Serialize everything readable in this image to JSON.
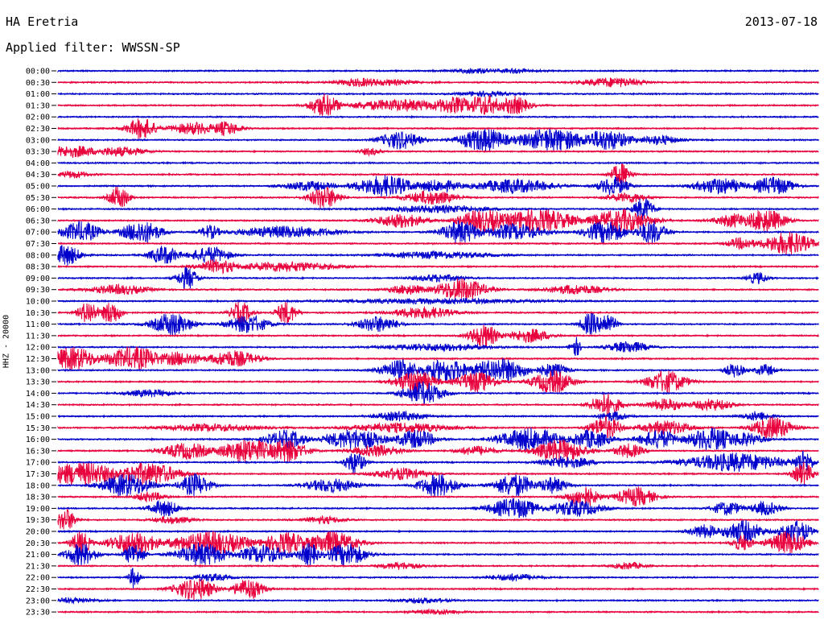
{
  "header": {
    "station": "HA Eretria",
    "date": "2013-07-18",
    "filter": "Applied filter: WWSSN-SP"
  },
  "colors": {
    "blue": "#0000cc",
    "red": "#e8003c"
  },
  "chart_data": {
    "type": "line",
    "title": "HA Eretria",
    "ylabel": "HHZ - 20000",
    "row_labels": [
      "00:00",
      "00:30",
      "01:00",
      "01:30",
      "02:00",
      "02:30",
      "03:00",
      "03:30",
      "04:00",
      "04:30",
      "05:00",
      "05:30",
      "06:00",
      "06:30",
      "07:00",
      "07:30",
      "08:00",
      "08:30",
      "09:00",
      "09:30",
      "10:00",
      "10:30",
      "11:00",
      "11:30",
      "12:00",
      "12:30",
      "13:00",
      "13:30",
      "14:00",
      "14:30",
      "15:00",
      "15:30",
      "16:00",
      "16:30",
      "17:00",
      "17:30",
      "18:00",
      "18:30",
      "19:00",
      "19:30",
      "20:00",
      "20:30",
      "21:00",
      "21:30",
      "22:00",
      "22:30",
      "23:00",
      "23:30"
    ],
    "row_colors": [
      "blue",
      "red",
      "blue",
      "red",
      "blue",
      "red",
      "blue",
      "red",
      "blue",
      "red",
      "blue",
      "red",
      "blue",
      "red",
      "blue",
      "red",
      "blue",
      "red",
      "blue",
      "red",
      "blue",
      "red",
      "blue",
      "red",
      "blue",
      "red",
      "blue",
      "red",
      "blue",
      "red",
      "blue",
      "red",
      "blue",
      "red",
      "blue",
      "red",
      "blue",
      "red",
      "blue",
      "red",
      "blue",
      "red",
      "blue",
      "red",
      "blue",
      "red",
      "blue",
      "red"
    ],
    "row_minutes": 30,
    "grid": false,
    "bursts": [
      [
        [
          0.55,
          0.2,
          0.05
        ],
        [
          0.6,
          0.15,
          0.05
        ]
      ],
      [
        [
          0.4,
          0.35,
          0.05
        ],
        [
          0.43,
          0.25,
          0.06
        ],
        [
          0.73,
          0.4,
          0.06
        ]
      ],
      [
        [
          0.56,
          0.2,
          0.05
        ]
      ],
      [
        [
          0.35,
          1.0,
          0.03
        ],
        [
          0.45,
          0.5,
          0.1
        ],
        [
          0.52,
          0.7,
          0.05
        ],
        [
          0.56,
          0.9,
          0.04
        ],
        [
          0.6,
          0.8,
          0.03
        ]
      ],
      [],
      [
        [
          0.11,
          0.9,
          0.03
        ],
        [
          0.18,
          0.5,
          0.05
        ],
        [
          0.22,
          0.6,
          0.03
        ]
      ],
      [
        [
          0.45,
          0.8,
          0.04
        ],
        [
          0.56,
          1.0,
          0.05
        ],
        [
          0.65,
          1.0,
          0.07
        ],
        [
          0.72,
          0.9,
          0.05
        ],
        [
          0.79,
          0.4,
          0.04
        ]
      ],
      [
        [
          0.02,
          0.5,
          0.05
        ],
        [
          0.08,
          0.4,
          0.05
        ],
        [
          0.41,
          0.3,
          0.02
        ]
      ],
      [],
      [
        [
          0.02,
          0.3,
          0.03
        ],
        [
          0.74,
          1.0,
          0.02
        ]
      ],
      [
        [
          0.33,
          0.4,
          0.05
        ],
        [
          0.43,
          0.9,
          0.06
        ],
        [
          0.5,
          0.5,
          0.05
        ],
        [
          0.6,
          0.6,
          0.08
        ],
        [
          0.73,
          0.8,
          0.03
        ],
        [
          0.87,
          0.7,
          0.05
        ],
        [
          0.94,
          0.8,
          0.04
        ]
      ],
      [
        [
          0.08,
          1.0,
          0.02
        ],
        [
          0.35,
          1.0,
          0.03
        ],
        [
          0.49,
          0.6,
          0.05
        ],
        [
          0.75,
          0.4,
          0.04
        ]
      ],
      [
        [
          0.5,
          0.3,
          0.1
        ],
        [
          0.77,
          1.0,
          0.02
        ]
      ],
      [
        [
          0.45,
          0.6,
          0.05
        ],
        [
          0.56,
          1.0,
          0.05
        ],
        [
          0.63,
          1.0,
          0.08
        ],
        [
          0.74,
          1.0,
          0.06
        ],
        [
          0.89,
          0.6,
          0.04
        ],
        [
          0.93,
          1.0,
          0.04
        ]
      ],
      [
        [
          0.03,
          0.9,
          0.04
        ],
        [
          0.11,
          1.0,
          0.04
        ],
        [
          0.2,
          0.6,
          0.02
        ],
        [
          0.3,
          0.5,
          0.1
        ],
        [
          0.53,
          1.0,
          0.04
        ],
        [
          0.6,
          0.7,
          0.06
        ],
        [
          0.72,
          1.0,
          0.04
        ],
        [
          0.78,
          1.0,
          0.03
        ]
      ],
      [
        [
          0.9,
          0.5,
          0.03
        ],
        [
          0.96,
          1.0,
          0.05
        ]
      ],
      [
        [
          0.01,
          0.9,
          0.03
        ],
        [
          0.14,
          0.8,
          0.03
        ],
        [
          0.2,
          0.7,
          0.04
        ],
        [
          0.5,
          0.3,
          0.1
        ]
      ],
      [
        [
          0.21,
          0.6,
          0.04
        ],
        [
          0.3,
          0.4,
          0.1
        ]
      ],
      [
        [
          0.17,
          1.0,
          0.02
        ],
        [
          0.5,
          0.3,
          0.05
        ],
        [
          0.92,
          0.5,
          0.02
        ]
      ],
      [
        [
          0.08,
          0.4,
          0.06
        ],
        [
          0.46,
          0.4,
          0.04
        ],
        [
          0.53,
          1.0,
          0.05
        ],
        [
          0.68,
          0.4,
          0.06
        ]
      ],
      [
        [
          0.5,
          0.2,
          0.2
        ]
      ],
      [
        [
          0.04,
          1.0,
          0.02
        ],
        [
          0.07,
          1.0,
          0.02
        ],
        [
          0.24,
          1.0,
          0.02
        ],
        [
          0.3,
          1.0,
          0.02
        ],
        [
          0.48,
          0.5,
          0.06
        ]
      ],
      [
        [
          0.15,
          1.0,
          0.04
        ],
        [
          0.25,
          0.8,
          0.04
        ],
        [
          0.42,
          0.7,
          0.04
        ],
        [
          0.7,
          1.0,
          0.02
        ],
        [
          0.72,
          1.0,
          0.02
        ]
      ],
      [
        [
          0.56,
          1.0,
          0.03
        ],
        [
          0.62,
          0.6,
          0.04
        ]
      ],
      [
        [
          0.5,
          0.3,
          0.1
        ],
        [
          0.68,
          0.9,
          0.01
        ],
        [
          0.75,
          0.5,
          0.04
        ]
      ],
      [
        [
          0.02,
          1.0,
          0.05
        ],
        [
          0.1,
          1.0,
          0.06
        ],
        [
          0.16,
          0.6,
          0.05
        ],
        [
          0.23,
          0.7,
          0.05
        ]
      ],
      [
        [
          0.45,
          0.9,
          0.04
        ],
        [
          0.51,
          1.0,
          0.05
        ],
        [
          0.58,
          1.0,
          0.06
        ],
        [
          0.65,
          0.6,
          0.03
        ],
        [
          0.89,
          0.6,
          0.02
        ],
        [
          0.93,
          0.5,
          0.02
        ]
      ],
      [
        [
          0.47,
          1.0,
          0.04
        ],
        [
          0.55,
          0.9,
          0.04
        ],
        [
          0.65,
          1.0,
          0.04
        ],
        [
          0.8,
          1.0,
          0.04
        ]
      ],
      [
        [
          0.48,
          1.0,
          0.04
        ],
        [
          0.12,
          0.3,
          0.05
        ]
      ],
      [
        [
          0.72,
          1.0,
          0.03
        ],
        [
          0.8,
          0.5,
          0.04
        ],
        [
          0.86,
          0.5,
          0.04
        ]
      ],
      [
        [
          0.45,
          0.4,
          0.05
        ],
        [
          0.73,
          0.4,
          0.03
        ],
        [
          0.92,
          0.4,
          0.03
        ]
      ],
      [
        [
          0.72,
          1.0,
          0.03
        ],
        [
          0.8,
          0.6,
          0.05
        ],
        [
          0.94,
          1.0,
          0.04
        ],
        [
          0.2,
          0.3,
          0.1
        ],
        [
          0.45,
          0.4,
          0.1
        ]
      ],
      [
        [
          0.3,
          0.8,
          0.04
        ],
        [
          0.39,
          0.9,
          0.06
        ],
        [
          0.47,
          0.8,
          0.04
        ],
        [
          0.62,
          1.0,
          0.06
        ],
        [
          0.7,
          0.8,
          0.04
        ],
        [
          0.79,
          0.8,
          0.04
        ],
        [
          0.86,
          1.0,
          0.05
        ],
        [
          0.9,
          0.6,
          0.04
        ]
      ],
      [
        [
          0.17,
          0.7,
          0.05
        ],
        [
          0.25,
          1.0,
          0.06
        ],
        [
          0.3,
          1.0,
          0.04
        ],
        [
          0.42,
          0.5,
          0.05
        ],
        [
          0.55,
          0.4,
          0.04
        ],
        [
          0.66,
          1.0,
          0.05
        ],
        [
          0.75,
          0.6,
          0.03
        ]
      ],
      [
        [
          0.39,
          1.0,
          0.02
        ],
        [
          0.67,
          0.5,
          0.05
        ],
        [
          0.89,
          0.8,
          0.1
        ],
        [
          0.98,
          1.0,
          0.02
        ]
      ],
      [
        [
          0.03,
          1.0,
          0.08
        ],
        [
          0.12,
          1.0,
          0.06
        ],
        [
          0.45,
          0.5,
          0.05
        ],
        [
          0.98,
          1.0,
          0.02
        ]
      ],
      [
        [
          0.09,
          1.0,
          0.05
        ],
        [
          0.18,
          1.0,
          0.03
        ],
        [
          0.36,
          0.6,
          0.05
        ],
        [
          0.5,
          1.0,
          0.04
        ],
        [
          0.6,
          1.0,
          0.04
        ],
        [
          0.65,
          0.7,
          0.03
        ]
      ],
      [
        [
          0.12,
          0.4,
          0.03
        ],
        [
          0.69,
          1.0,
          0.03
        ],
        [
          0.76,
          0.8,
          0.04
        ]
      ],
      [
        [
          0.14,
          0.7,
          0.03
        ],
        [
          0.6,
          0.9,
          0.05
        ],
        [
          0.68,
          0.7,
          0.05
        ],
        [
          0.88,
          0.6,
          0.03
        ],
        [
          0.93,
          0.6,
          0.03
        ]
      ],
      [
        [
          0.01,
          1.0,
          0.02
        ],
        [
          0.15,
          0.3,
          0.04
        ],
        [
          0.35,
          0.3,
          0.04
        ]
      ],
      [
        [
          0.9,
          1.0,
          0.04
        ],
        [
          0.97,
          1.0,
          0.03
        ],
        [
          0.85,
          0.6,
          0.03
        ]
      ],
      [
        [
          0.03,
          1.0,
          0.02
        ],
        [
          0.1,
          1.0,
          0.05
        ],
        [
          0.2,
          1.0,
          0.08
        ],
        [
          0.3,
          0.9,
          0.05
        ],
        [
          0.36,
          1.0,
          0.05
        ],
        [
          0.9,
          0.7,
          0.02
        ],
        [
          0.96,
          1.0,
          0.04
        ]
      ],
      [
        [
          0.03,
          1.0,
          0.03
        ],
        [
          0.1,
          1.0,
          0.02
        ],
        [
          0.19,
          1.0,
          0.05
        ],
        [
          0.27,
          0.8,
          0.05
        ],
        [
          0.33,
          1.0,
          0.02
        ],
        [
          0.38,
          1.0,
          0.04
        ]
      ],
      [
        [
          0.45,
          0.3,
          0.04
        ],
        [
          0.75,
          0.3,
          0.03
        ]
      ],
      [
        [
          0.1,
          1.0,
          0.01
        ],
        [
          0.2,
          0.3,
          0.04
        ],
        [
          0.6,
          0.3,
          0.05
        ]
      ],
      [
        [
          0.18,
          1.0,
          0.04
        ],
        [
          0.25,
          0.9,
          0.03
        ]
      ],
      [
        [
          0.02,
          0.2,
          0.05
        ],
        [
          0.48,
          0.2,
          0.05
        ]
      ],
      [
        [
          0.5,
          0.2,
          0.05
        ]
      ]
    ]
  }
}
